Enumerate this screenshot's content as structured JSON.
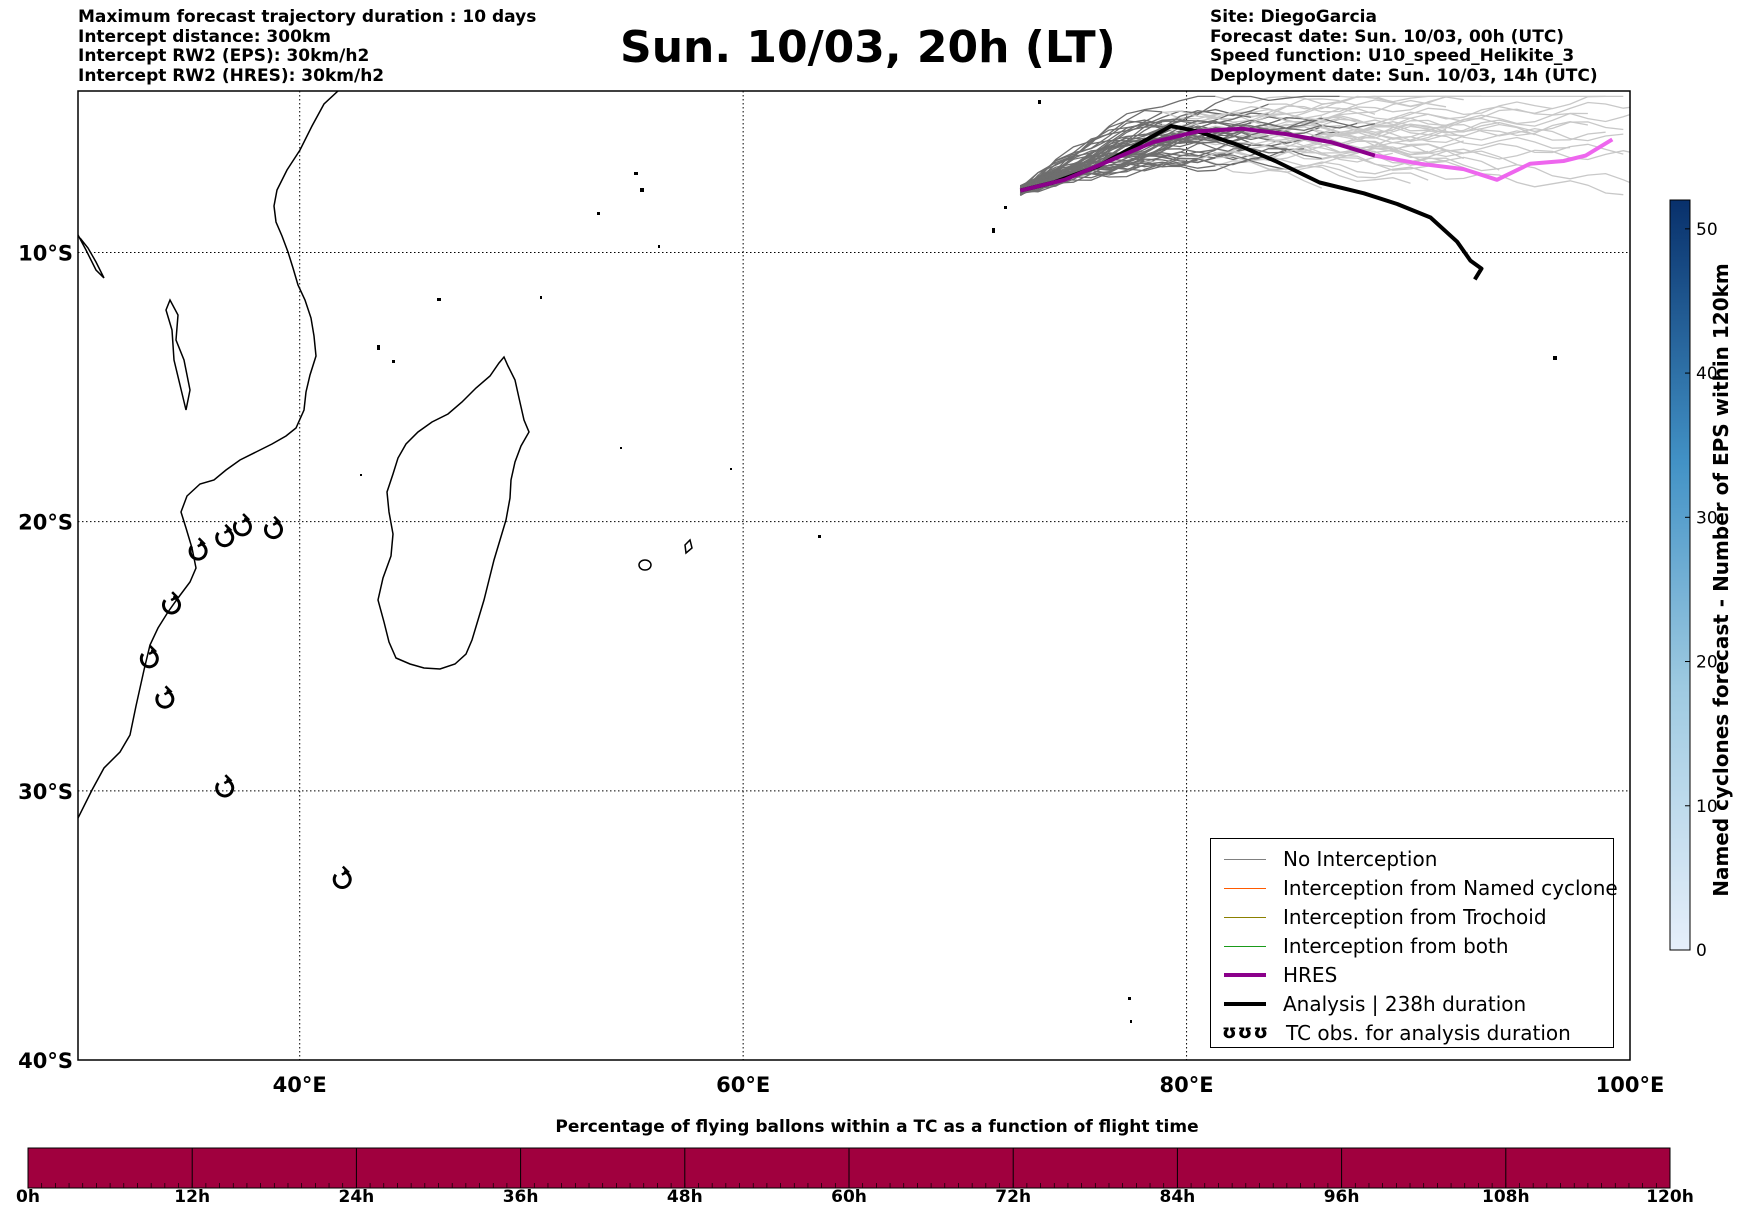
{
  "header_left": [
    "Maximum forecast trajectory duration : 10 days",
    "Intercept distance: 300km",
    "Intercept RW2 (EPS):  30km/h2",
    "Intercept RW2 (HRES): 30km/h2"
  ],
  "header_right": [
    "Site: DiegoGarcia",
    "Forecast date: Sun. 10/03, 00h (UTC)",
    "Speed function: U10_speed_Helikite_3",
    "Deployment date: Sun. 10/03, 14h (UTC)"
  ],
  "title": "Sun. 10/03, 20h (LT)",
  "map": {
    "lon_range": [
      30,
      100
    ],
    "lat_range": [
      -40,
      -4
    ],
    "lon_ticks": [
      {
        "value": 40,
        "label": "40°E"
      },
      {
        "value": 60,
        "label": "60°E"
      },
      {
        "value": 80,
        "label": "80°E"
      },
      {
        "value": 100,
        "label": "100°E"
      }
    ],
    "lat_ticks": [
      {
        "value": -10,
        "label": "10°S"
      },
      {
        "value": -20,
        "label": "20°S"
      },
      {
        "value": -30,
        "label": "30°S"
      },
      {
        "value": -40,
        "label": "40°S"
      }
    ],
    "grid": true,
    "tc_obs": [
      [
        37.4,
        -20.2
      ],
      [
        38.8,
        -20.3
      ],
      [
        36.6,
        -20.6
      ],
      [
        35.4,
        -21.1
      ],
      [
        34.2,
        -23.1
      ],
      [
        33.2,
        -25.1
      ],
      [
        33.9,
        -26.6
      ],
      [
        36.6,
        -29.9
      ],
      [
        41.9,
        -33.3
      ]
    ],
    "hres_track": [
      [
        72.5,
        -7.7
      ],
      [
        74.5,
        -7.3
      ],
      [
        76.5,
        -6.6
      ],
      [
        78.5,
        -5.9
      ],
      [
        80.5,
        -5.5
      ],
      [
        82.5,
        -5.4
      ],
      [
        84.5,
        -5.6
      ],
      [
        86.5,
        -5.9
      ],
      [
        88.5,
        -6.4
      ],
      [
        90.5,
        -6.7
      ],
      [
        92.5,
        -6.9
      ],
      [
        94.0,
        -7.3
      ],
      [
        95.5,
        -6.7
      ],
      [
        97.0,
        -6.6
      ],
      [
        98.0,
        -6.4
      ],
      [
        99.2,
        -5.8
      ]
    ],
    "analysis_track": [
      [
        72.5,
        -7.7
      ],
      [
        74.0,
        -7.4
      ],
      [
        76.0,
        -6.8
      ],
      [
        78.0,
        -5.9
      ],
      [
        79.3,
        -5.3
      ],
      [
        80.5,
        -5.5
      ],
      [
        82.3,
        -6.0
      ],
      [
        84.0,
        -6.6
      ],
      [
        86.0,
        -7.4
      ],
      [
        88.0,
        -7.8
      ],
      [
        89.5,
        -8.2
      ],
      [
        91.0,
        -8.7
      ],
      [
        92.2,
        -9.6
      ],
      [
        92.8,
        -10.3
      ],
      [
        93.3,
        -10.6
      ],
      [
        93.0,
        -11.0
      ]
    ]
  },
  "legend": [
    {
      "label": "No Interception",
      "color": "#808080",
      "width": 1.4
    },
    {
      "label": "Interception from Named cyclone",
      "color": "#ff5a00",
      "width": 1.4
    },
    {
      "label": "Interception from Trochoid",
      "color": "#8b8000",
      "width": 1.4
    },
    {
      "label": "Interception from both",
      "color": "#1a9a1a",
      "width": 1.4
    },
    {
      "label": "HRES",
      "color": "#8b008b",
      "width": 4
    },
    {
      "label": "Analysis | 238h duration",
      "color": "#000000",
      "width": 4
    },
    {
      "label": "TC obs. for analysis duration",
      "symbol": "tc",
      "glyphs": "ʊʊʊ"
    }
  ],
  "cbar_v": {
    "label": "Named cyclones forecast - Number of EPS within 120km",
    "min": 0,
    "max": 52,
    "ticks": [
      0,
      10,
      20,
      30,
      40,
      50
    ],
    "color_low": "#e6effa",
    "color_high": "#08306b"
  },
  "cbar_h": {
    "title": "Percentage of flying ballons within a TC as a function of flight time",
    "color": "#a0003e",
    "ticks": [
      "0h",
      "12h",
      "24h",
      "36h",
      "48h",
      "60h",
      "72h",
      "84h",
      "96h",
      "108h",
      "120h"
    ]
  }
}
